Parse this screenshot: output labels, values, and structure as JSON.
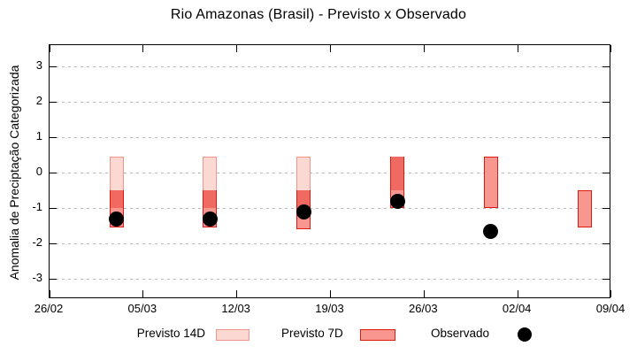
{
  "title": "Rio Amazonas (Brasil) - Previsto x Observado",
  "chart_data": {
    "type": "bar",
    "subtype": "forecast-candlestick-with-observed-dots",
    "title": "Rio Amazonas (Brasil) - Previsto x Observado",
    "xlabel": "",
    "ylabel": "Anomalia de Preciptação Categorizada",
    "x_tick_labels": [
      "26/02",
      "05/03",
      "12/03",
      "19/03",
      "26/03",
      "02/04",
      "09/04"
    ],
    "x_tick_days": [
      0,
      7,
      14,
      21,
      28,
      35,
      42
    ],
    "x_range_days": [
      0,
      42
    ],
    "y_ticks": [
      "3",
      "2",
      "1",
      "0",
      "-1",
      "-2",
      "-3"
    ],
    "y_tick_values": [
      3,
      2,
      1,
      0,
      -1,
      -2,
      -3
    ],
    "ylim": [
      -3.575,
      3.6
    ],
    "grid": "horizontal-dashed",
    "legend_position": "bottom-center",
    "series": [
      {
        "name": "Previsto 14D",
        "type": "box"
      },
      {
        "name": "Previsto 7D",
        "type": "box"
      },
      {
        "name": "Observado",
        "type": "dot"
      }
    ],
    "clusters": [
      {
        "date": "03/03",
        "day": 5,
        "previsto14d": [
          0.45,
          -1.0
        ],
        "previsto7d": [
          -0.5,
          -1.55
        ],
        "observado": -1.3
      },
      {
        "date": "10/03",
        "day": 12,
        "previsto14d": [
          0.45,
          -1.0
        ],
        "previsto7d": [
          -0.5,
          -1.55
        ],
        "observado": -1.3
      },
      {
        "date": "17/03",
        "day": 19,
        "previsto14d": [
          0.45,
          -1.0
        ],
        "previsto7d": [
          -0.5,
          -1.6
        ],
        "observado": -1.1
      },
      {
        "date": "24/03",
        "day": 26,
        "previsto14d": [
          0.45,
          -0.5
        ],
        "previsto7d": [
          0.45,
          -1.0
        ],
        "observado": -0.8
      },
      {
        "date": "31/03",
        "day": 33,
        "previsto14d": null,
        "previsto7d": [
          0.45,
          -1.0
        ],
        "observado": -1.65
      },
      {
        "date": "07/04",
        "day": 40,
        "previsto14d": null,
        "previsto7d": [
          -0.5,
          -1.55
        ],
        "observado": null
      }
    ],
    "colors": {
      "previsto14d_fill": "#fbd8d2",
      "previsto14d_border": "#f0948c",
      "previsto7d_fill": "#f89690",
      "previsto7d_border": "#e01810",
      "overlap_fill": "#f06a62",
      "observado": "#000000",
      "grid": "#b8b8b8",
      "axis": "#000000"
    }
  },
  "legend": {
    "previsto14d_label": "Previsto 14D",
    "previsto7d_label": "Previsto 7D",
    "observado_label": "Observado"
  }
}
